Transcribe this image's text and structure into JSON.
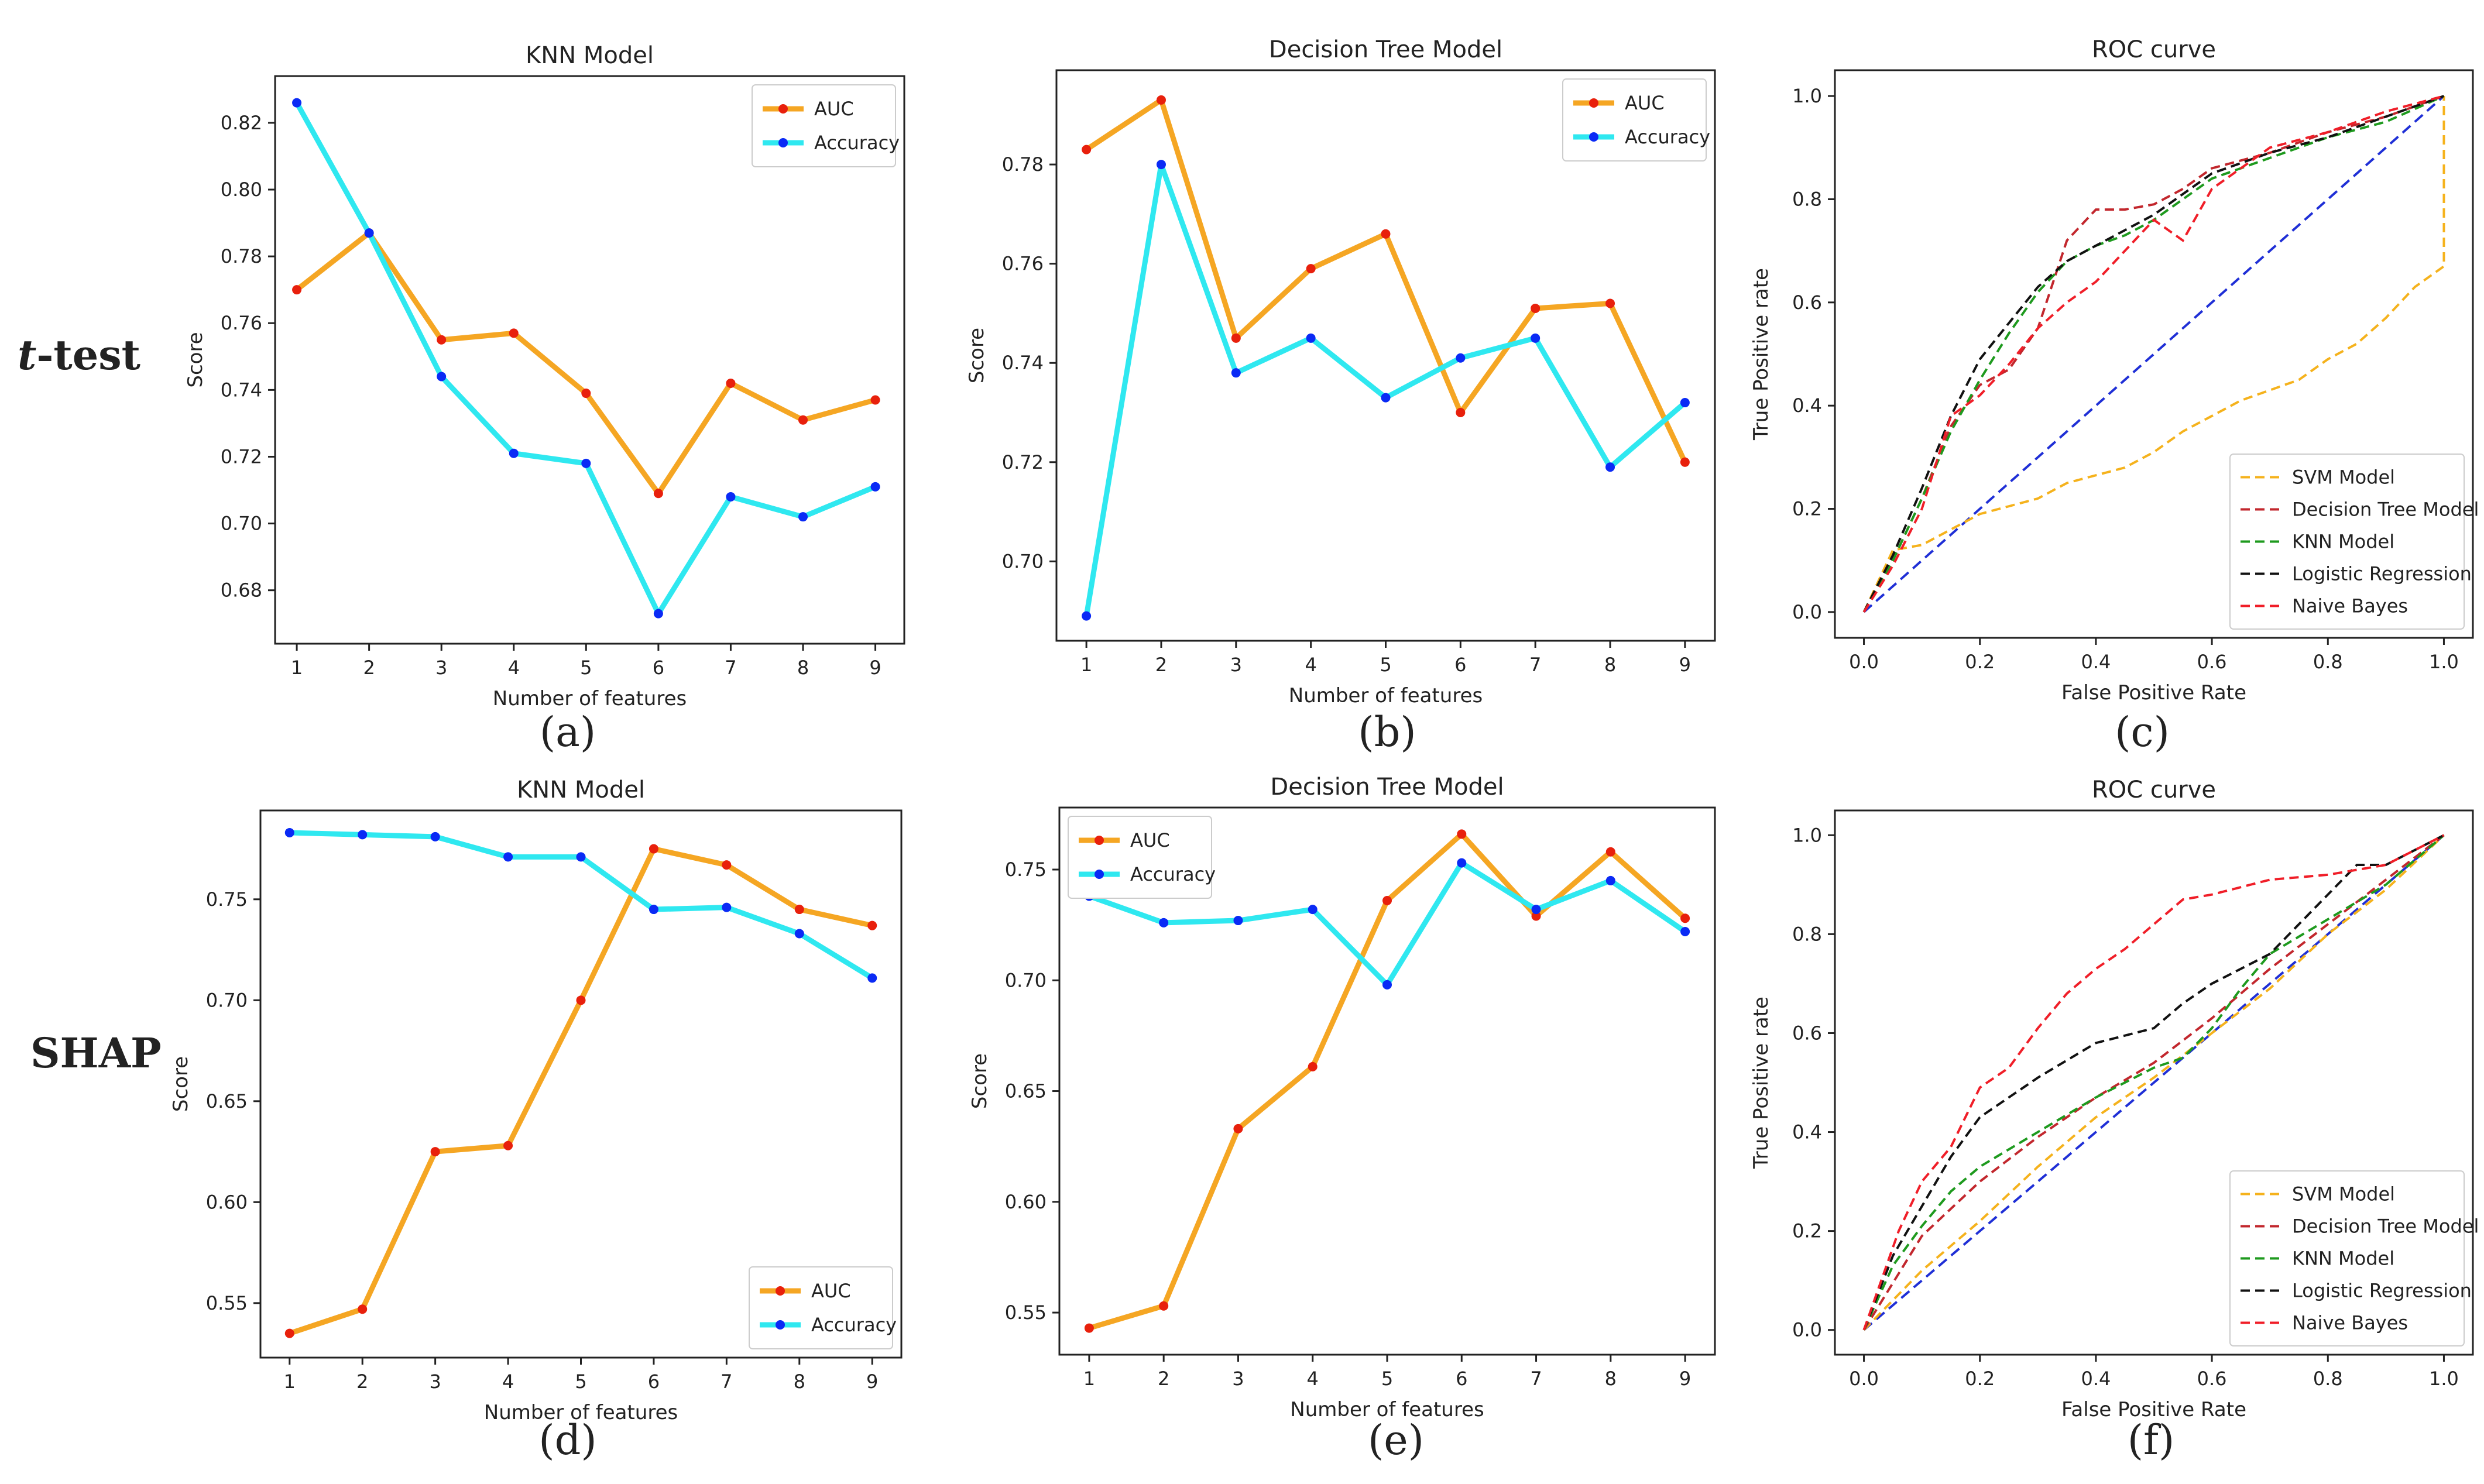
{
  "row_labels": {
    "top_italic": "t",
    "top_rest": "-test",
    "bottom": "SHAP"
  },
  "panel_labels": [
    "(a)",
    "(b)",
    "(c)",
    "(d)",
    "(e)",
    "(f)"
  ],
  "colors": {
    "auc": "#F5A623",
    "auc_marker": "#E8200C",
    "accuracy": "#2FE8F0",
    "accuracy_marker": "#0A2AF5",
    "diagonal": "#1F2FD6",
    "svm": "#F5B21C",
    "dt": "#C2272D",
    "knn": "#1E9A1E",
    "lr": "#111111",
    "nb": "#F01E28"
  },
  "chart_data": [
    {
      "id": "a",
      "type": "line",
      "title": "KNN Model",
      "xlabel": "Number of features",
      "ylabel": "Score",
      "x": [
        1,
        2,
        3,
        4,
        5,
        6,
        7,
        8,
        9
      ],
      "xlim": [
        0.7,
        9.4
      ],
      "ylim": [
        0.664,
        0.834
      ],
      "yticks": [
        0.68,
        0.7,
        0.72,
        0.74,
        0.76,
        0.78,
        0.8,
        0.82
      ],
      "ytick_labels": [
        "0.68",
        "0.70",
        "0.72",
        "0.74",
        "0.76",
        "0.78",
        "0.80",
        "0.82"
      ],
      "legend": "top-right",
      "series": [
        {
          "name": "AUC",
          "values": [
            0.77,
            0.787,
            0.755,
            0.757,
            0.739,
            0.709,
            0.742,
            0.731,
            0.737
          ]
        },
        {
          "name": "Accuracy",
          "values": [
            0.826,
            0.787,
            0.744,
            0.721,
            0.718,
            0.673,
            0.708,
            0.702,
            0.711
          ]
        }
      ]
    },
    {
      "id": "b",
      "type": "line",
      "title": "Decision Tree Model",
      "xlabel": "Number of features",
      "ylabel": "Score",
      "x": [
        1,
        2,
        3,
        4,
        5,
        6,
        7,
        8,
        9
      ],
      "xlim": [
        0.6,
        9.4
      ],
      "ylim": [
        0.684,
        0.799
      ],
      "yticks": [
        0.7,
        0.72,
        0.74,
        0.76,
        0.78
      ],
      "ytick_labels": [
        "0.70",
        "0.72",
        "0.74",
        "0.76",
        "0.78"
      ],
      "legend": "top-right",
      "series": [
        {
          "name": "AUC",
          "values": [
            0.783,
            0.793,
            0.745,
            0.759,
            0.766,
            0.73,
            0.751,
            0.752,
            0.72
          ]
        },
        {
          "name": "Accuracy",
          "values": [
            0.689,
            0.78,
            0.738,
            0.745,
            0.733,
            0.741,
            0.745,
            0.719,
            0.732
          ]
        }
      ]
    },
    {
      "id": "c",
      "type": "line",
      "title": "ROC curve",
      "xlabel": "False Positive Rate",
      "ylabel": "True Positive rate",
      "xlim": [
        -0.05,
        1.05
      ],
      "ylim": [
        -0.05,
        1.05
      ],
      "xticks": [
        0,
        0.2,
        0.4,
        0.6,
        0.8,
        1.0
      ],
      "xtick_labels": [
        "0.0",
        "0.2",
        "0.4",
        "0.6",
        "0.8",
        "1.0"
      ],
      "yticks": [
        0,
        0.2,
        0.4,
        0.6,
        0.8,
        1.0
      ],
      "ytick_labels": [
        "0.0",
        "0.2",
        "0.4",
        "0.6",
        "0.8",
        "1.0"
      ],
      "legend": "bottom-right",
      "series": [
        {
          "name": "SVM Model",
          "x": [
            0,
            0.05,
            0.1,
            0.15,
            0.2,
            0.3,
            0.35,
            0.45,
            0.5,
            0.55,
            0.6,
            0.65,
            0.75,
            0.8,
            0.85,
            0.9,
            0.95,
            1.0,
            1.0
          ],
          "y": [
            0,
            0.12,
            0.13,
            0.16,
            0.19,
            0.22,
            0.25,
            0.28,
            0.31,
            0.35,
            0.38,
            0.41,
            0.45,
            0.49,
            0.52,
            0.57,
            0.63,
            0.67,
            1.0
          ]
        },
        {
          "name": "Decision Tree Model",
          "x": [
            0,
            0.05,
            0.1,
            0.15,
            0.2,
            0.25,
            0.3,
            0.35,
            0.4,
            0.45,
            0.5,
            0.55,
            0.6,
            0.7,
            0.8,
            0.9,
            1.0
          ],
          "y": [
            0,
            0.1,
            0.22,
            0.36,
            0.44,
            0.47,
            0.55,
            0.72,
            0.78,
            0.78,
            0.79,
            0.82,
            0.86,
            0.89,
            0.93,
            0.96,
            1.0
          ]
        },
        {
          "name": "KNN Model",
          "x": [
            0,
            0.05,
            0.1,
            0.15,
            0.2,
            0.25,
            0.3,
            0.35,
            0.4,
            0.45,
            0.5,
            0.55,
            0.6,
            0.7,
            0.8,
            0.9,
            1.0
          ],
          "y": [
            0,
            0.1,
            0.22,
            0.35,
            0.45,
            0.54,
            0.62,
            0.68,
            0.71,
            0.73,
            0.76,
            0.8,
            0.84,
            0.88,
            0.92,
            0.95,
            1.0
          ]
        },
        {
          "name": "Logistic Regression",
          "x": [
            0,
            0.05,
            0.1,
            0.15,
            0.2,
            0.25,
            0.3,
            0.35,
            0.4,
            0.45,
            0.5,
            0.55,
            0.6,
            0.7,
            0.8,
            0.9,
            1.0
          ],
          "y": [
            0,
            0.11,
            0.24,
            0.38,
            0.49,
            0.56,
            0.63,
            0.68,
            0.71,
            0.74,
            0.77,
            0.81,
            0.85,
            0.89,
            0.92,
            0.96,
            1.0
          ]
        },
        {
          "name": "Naive Bayes",
          "x": [
            0,
            0.05,
            0.1,
            0.15,
            0.2,
            0.25,
            0.3,
            0.35,
            0.4,
            0.45,
            0.5,
            0.55,
            0.6,
            0.7,
            0.8,
            0.9,
            1.0
          ],
          "y": [
            0,
            0.09,
            0.2,
            0.38,
            0.42,
            0.48,
            0.55,
            0.6,
            0.64,
            0.7,
            0.76,
            0.72,
            0.82,
            0.9,
            0.93,
            0.97,
            1.0
          ]
        }
      ],
      "diagonal": true
    },
    {
      "id": "d",
      "type": "line",
      "title": "KNN Model",
      "xlabel": "Number of features",
      "ylabel": "Score",
      "x": [
        1,
        2,
        3,
        4,
        5,
        6,
        7,
        8,
        9
      ],
      "xlim": [
        0.6,
        9.4
      ],
      "ylim": [
        0.523,
        0.794
      ],
      "yticks": [
        0.55,
        0.6,
        0.65,
        0.7,
        0.75
      ],
      "ytick_labels": [
        "0.55",
        "0.60",
        "0.65",
        "0.70",
        "0.75"
      ],
      "legend": "bottom-right",
      "series": [
        {
          "name": "AUC",
          "values": [
            0.535,
            0.547,
            0.625,
            0.628,
            0.7,
            0.775,
            0.767,
            0.745,
            0.737
          ]
        },
        {
          "name": "Accuracy",
          "values": [
            0.783,
            0.782,
            0.781,
            0.771,
            0.771,
            0.745,
            0.746,
            0.733,
            0.711
          ]
        }
      ]
    },
    {
      "id": "e",
      "type": "line",
      "title": "Decision Tree Model",
      "xlabel": "Number of features",
      "ylabel": "Score",
      "x": [
        1,
        2,
        3,
        4,
        5,
        6,
        7,
        8,
        9
      ],
      "xlim": [
        0.6,
        9.4
      ],
      "ylim": [
        0.531,
        0.778
      ],
      "yticks": [
        0.55,
        0.6,
        0.65,
        0.7,
        0.75
      ],
      "ytick_labels": [
        "0.55",
        "0.60",
        "0.65",
        "0.70",
        "0.75"
      ],
      "legend": "top-left",
      "series": [
        {
          "name": "AUC",
          "values": [
            0.543,
            0.553,
            0.633,
            0.661,
            0.736,
            0.766,
            0.729,
            0.758,
            0.728
          ]
        },
        {
          "name": "Accuracy",
          "values": [
            0.738,
            0.726,
            0.727,
            0.732,
            0.698,
            0.753,
            0.732,
            0.745,
            0.722
          ]
        }
      ]
    },
    {
      "id": "f",
      "type": "line",
      "title": "ROC curve",
      "xlabel": "False Positive Rate",
      "ylabel": "True Positive rate",
      "xlim": [
        -0.05,
        1.05
      ],
      "ylim": [
        -0.05,
        1.05
      ],
      "xticks": [
        0,
        0.2,
        0.4,
        0.6,
        0.8,
        1.0
      ],
      "xtick_labels": [
        "0.0",
        "0.2",
        "0.4",
        "0.6",
        "0.8",
        "1.0"
      ],
      "yticks": [
        0,
        0.2,
        0.4,
        0.6,
        0.8,
        1.0
      ],
      "ytick_labels": [
        "0.0",
        "0.2",
        "0.4",
        "0.6",
        "0.8",
        "1.0"
      ],
      "legend": "bottom-right",
      "series": [
        {
          "name": "SVM Model",
          "x": [
            0,
            0.1,
            0.2,
            0.3,
            0.4,
            0.5,
            0.6,
            0.7,
            0.8,
            0.9,
            1.0
          ],
          "y": [
            0,
            0.12,
            0.22,
            0.33,
            0.43,
            0.51,
            0.6,
            0.69,
            0.8,
            0.89,
            1.0
          ]
        },
        {
          "name": "Decision Tree Model",
          "x": [
            0,
            0.1,
            0.2,
            0.3,
            0.4,
            0.5,
            0.6,
            0.7,
            0.8,
            0.9,
            1.0
          ],
          "y": [
            0,
            0.19,
            0.3,
            0.39,
            0.47,
            0.54,
            0.63,
            0.73,
            0.82,
            0.91,
            1.0
          ]
        },
        {
          "name": "KNN Model",
          "x": [
            0,
            0.05,
            0.1,
            0.15,
            0.2,
            0.3,
            0.4,
            0.5,
            0.55,
            0.6,
            0.65,
            0.7,
            0.8,
            0.9,
            1.0
          ],
          "y": [
            0,
            0.13,
            0.21,
            0.28,
            0.33,
            0.4,
            0.47,
            0.53,
            0.55,
            0.61,
            0.69,
            0.76,
            0.83,
            0.9,
            1.0
          ]
        },
        {
          "name": "Logistic Regression",
          "x": [
            0,
            0.05,
            0.1,
            0.15,
            0.2,
            0.3,
            0.4,
            0.5,
            0.55,
            0.6,
            0.7,
            0.8,
            0.85,
            0.9,
            1.0
          ],
          "y": [
            0,
            0.15,
            0.25,
            0.35,
            0.43,
            0.51,
            0.58,
            0.61,
            0.66,
            0.7,
            0.76,
            0.88,
            0.94,
            0.94,
            1.0
          ]
        },
        {
          "name": "Naive Bayes",
          "x": [
            0,
            0.03,
            0.06,
            0.1,
            0.15,
            0.2,
            0.25,
            0.3,
            0.35,
            0.4,
            0.45,
            0.5,
            0.55,
            0.6,
            0.7,
            0.8,
            0.9,
            1.0
          ],
          "y": [
            0,
            0.1,
            0.2,
            0.3,
            0.37,
            0.49,
            0.53,
            0.61,
            0.68,
            0.73,
            0.77,
            0.82,
            0.87,
            0.88,
            0.91,
            0.92,
            0.94,
            1.0
          ]
        }
      ],
      "diagonal": true
    }
  ]
}
